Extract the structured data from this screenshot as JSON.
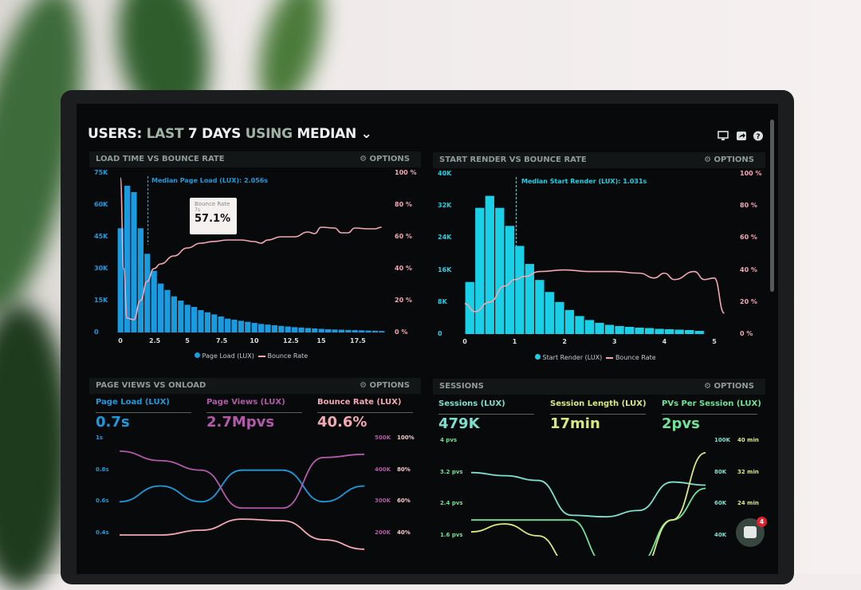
{
  "header": {
    "title_parts": [
      "USERS:",
      "LAST",
      "7 DAYS",
      "USING",
      "MEDIAN"
    ],
    "icons": [
      "monitor-icon",
      "share-icon",
      "help-icon"
    ]
  },
  "options_label": "OPTIONS",
  "colors": {
    "blue": "#1a9be0",
    "cyan": "#19d0e6",
    "pink": "#f4a7b4",
    "purple": "#b25aa9",
    "teal": "#7ee0d0",
    "green": "#6fe39a",
    "yellow": "#d8ea7c"
  },
  "chart_data": [
    {
      "type": "bar",
      "title": "LOAD TIME VS BOUNCE RATE",
      "annotation": "Median Page Load (LUX): 2.056s",
      "median": 2.056,
      "tooltip": {
        "label": "Bounce Rate",
        "sub": "7s",
        "value": "57.1%"
      },
      "yticks": [
        "75K",
        "60K",
        "45K",
        "30K",
        "15K",
        "0"
      ],
      "y2ticks": [
        "100 %",
        "80 %",
        "60 %",
        "40 %",
        "20 %",
        "0 %"
      ],
      "xticks": [
        "0",
        "2.5",
        "5",
        "7.5",
        "10",
        "12.5",
        "15",
        "17.5"
      ],
      "ylim": [
        0,
        75000
      ],
      "y2lim": [
        0,
        100
      ],
      "xlim": [
        0,
        19.8
      ],
      "series": [
        {
          "name": "Page Load (LUX)",
          "type": "bar",
          "x_start": 0,
          "x_step": 0.5,
          "values": [
            49000,
            69000,
            66000,
            49000,
            37000,
            29000,
            23000,
            20000,
            17000,
            15000,
            13000,
            12000,
            10500,
            9500,
            8500,
            7500,
            6500,
            6000,
            5500,
            5000,
            4500,
            4000,
            3700,
            3400,
            3100,
            2800,
            2500,
            2300,
            2100,
            1900,
            1700,
            1500,
            1400,
            1300,
            1200,
            1100,
            1000,
            900,
            800,
            700
          ]
        },
        {
          "name": "Bounce Rate",
          "type": "line",
          "axis": "right",
          "points": [
            [
              0,
              97
            ],
            [
              0.25,
              40
            ],
            [
              0.5,
              9
            ],
            [
              1,
              8
            ],
            [
              1.5,
              20
            ],
            [
              2,
              32
            ],
            [
              2.5,
              40
            ],
            [
              3,
              43
            ],
            [
              4,
              48
            ],
            [
              5,
              53
            ],
            [
              6,
              56
            ],
            [
              7,
              57.1
            ],
            [
              8,
              58
            ],
            [
              9,
              58
            ],
            [
              10,
              57
            ],
            [
              10.5,
              56
            ],
            [
              11,
              58
            ],
            [
              12,
              60
            ],
            [
              13,
              60
            ],
            [
              14,
              63
            ],
            [
              14.5,
              62
            ],
            [
              15,
              66
            ],
            [
              16,
              65.5
            ],
            [
              16.5,
              62.5
            ],
            [
              17,
              62.5
            ],
            [
              17.5,
              65.5
            ],
            [
              18.5,
              65
            ],
            [
              19,
              65
            ],
            [
              19.5,
              66
            ]
          ]
        }
      ]
    },
    {
      "type": "bar",
      "title": "START RENDER VS BOUNCE RATE",
      "annotation": "Median Start Render (LUX): 1.031s",
      "median": 1.031,
      "yticks": [
        "40K",
        "32K",
        "24K",
        "16K",
        "8K",
        "0"
      ],
      "y2ticks": [
        "100 %",
        "80 %",
        "60 %",
        "40 %",
        "20 %",
        "0 %"
      ],
      "xticks": [
        "0",
        "1",
        "2",
        "3",
        "4",
        "5"
      ],
      "ylim": [
        0,
        40000
      ],
      "y2lim": [
        0,
        100
      ],
      "xlim": [
        0,
        5.2
      ],
      "series": [
        {
          "name": "Start Render (LUX)",
          "type": "bar",
          "x_start": 0.1,
          "x_step": 0.2,
          "values": [
            13000,
            31500,
            34500,
            31500,
            27000,
            22000,
            17500,
            13500,
            10500,
            8000,
            6000,
            4500,
            3500,
            2800,
            2300,
            2000,
            1800,
            1600,
            1500,
            1300,
            1200,
            1100,
            1000,
            800
          ]
        },
        {
          "name": "Bounce Rate",
          "type": "line",
          "axis": "right",
          "points": [
            [
              0,
              19
            ],
            [
              0.2,
              14
            ],
            [
              0.5,
              20
            ],
            [
              0.8,
              30
            ],
            [
              1,
              34
            ],
            [
              1.2,
              36
            ],
            [
              1.5,
              39
            ],
            [
              2,
              40
            ],
            [
              2.5,
              39
            ],
            [
              3,
              39
            ],
            [
              3.5,
              38
            ],
            [
              3.8,
              35
            ],
            [
              4,
              38
            ],
            [
              4.2,
              34
            ],
            [
              4.6,
              39
            ],
            [
              4.8,
              34
            ],
            [
              5,
              35
            ],
            [
              5.2,
              13
            ]
          ]
        }
      ]
    },
    {
      "type": "line",
      "title": "PAGE VIEWS VS ONLOAD",
      "stats": [
        {
          "label": "Page Load (LUX)",
          "value": "0.7s"
        },
        {
          "label": "Page Views (LUX)",
          "value": "2.7Mpvs"
        },
        {
          "label": "Bounce Rate (LUX)",
          "value": "40.6%"
        }
      ],
      "yticks": [
        "1s",
        "0.8s",
        "0.6s",
        "0.4s"
      ],
      "y2ticks": [
        "500K",
        "400K",
        "300K",
        "200K"
      ],
      "y3ticks": [
        "100%",
        "80%",
        "60%",
        "40%"
      ],
      "ylim": [
        0.4,
        1.0
      ],
      "y2lim": [
        200000,
        500000
      ],
      "y3lim": [
        40,
        100
      ],
      "series": [
        {
          "name": "Page Load (LUX)",
          "axis": "left",
          "values": [
            0.6,
            0.7,
            0.6,
            0.8,
            0.8,
            0.6,
            0.7
          ]
        },
        {
          "name": "Page Views (LUX)",
          "axis": "right",
          "values": [
            460000,
            430000,
            400000,
            280000,
            280000,
            440000,
            450000
          ]
        },
        {
          "name": "Bounce Rate (LUX)",
          "axis": "right2",
          "values": [
            39,
            39,
            42,
            49,
            48,
            36,
            30
          ]
        }
      ]
    },
    {
      "type": "line",
      "title": "SESSIONS",
      "stats": [
        {
          "label": "Sessions (LUX)",
          "value": "479K"
        },
        {
          "label": "Session Length (LUX)",
          "value": "17min"
        },
        {
          "label": "PVs Per Session (LUX)",
          "value": "2pvs"
        }
      ],
      "yticks": [
        "4 pvs",
        "3.2 pvs",
        "2.4 pvs",
        "1.6 pvs"
      ],
      "y2ticks": [
        "100K",
        "80K",
        "60K",
        "40K"
      ],
      "y3ticks": [
        "40 min",
        "32 min",
        "24 min"
      ],
      "ylim": [
        1.6,
        4
      ],
      "y2lim": [
        40000,
        100000
      ],
      "y3lim": [
        16,
        40
      ],
      "series": [
        {
          "name": "Sessions (LUX)",
          "axis": "right",
          "values": [
            80000,
            78000,
            75000,
            53000,
            52000,
            56000,
            74000,
            72000
          ]
        },
        {
          "name": "PVs Per Session (LUX)",
          "axis": "left",
          "values": [
            2.0,
            2.0,
            2.0,
            2.0,
            0.9,
            0.9,
            2.0,
            2.8
          ]
        },
        {
          "name": "Session Length (LUX)",
          "axis": "right2",
          "values": [
            17,
            19,
            16,
            8,
            5,
            6,
            20,
            37
          ]
        }
      ]
    }
  ],
  "chat": {
    "badge": "4"
  }
}
